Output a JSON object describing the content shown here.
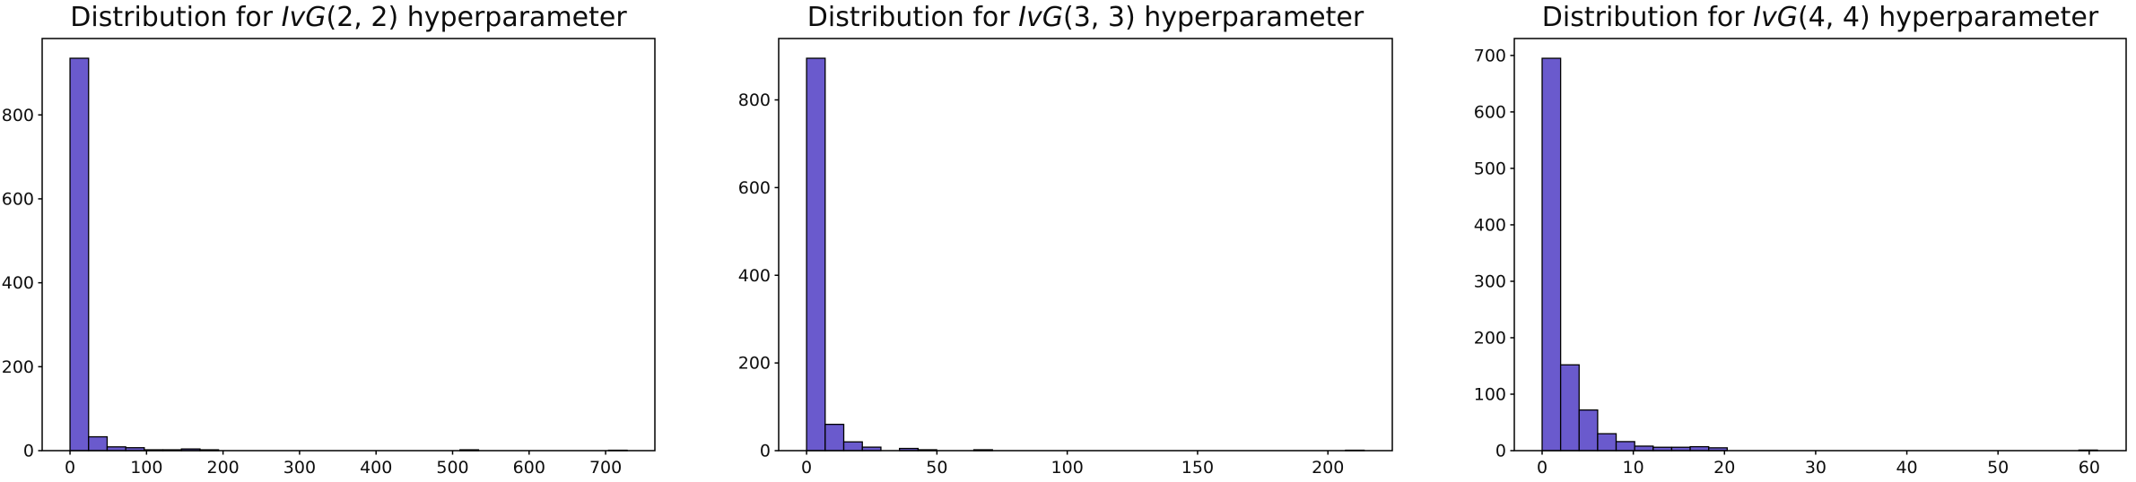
{
  "figure": {
    "background": "#ffffff",
    "bar_fill": "#6a5acd",
    "bar_edge": "#000000",
    "axis_color": "#000000",
    "text_color": "#0d0d0d"
  },
  "chart_data": [
    {
      "type": "bar",
      "title": "Distribution for IvG(2, 2) hyperparameter",
      "title_prefix": "Distribution for ",
      "title_math": "IvG",
      "title_args": "(2, 2)",
      "title_suffix": " hyperparameter",
      "xlabel": "",
      "ylabel": "",
      "bin_start": 0,
      "bin_width": 24.27,
      "counts": [
        935,
        33,
        9,
        7,
        2,
        2,
        4,
        2,
        0,
        0,
        0,
        0,
        0,
        0,
        0,
        0,
        0,
        0,
        0,
        0,
        0,
        2,
        0,
        0,
        0,
        0,
        0,
        0,
        0,
        1
      ],
      "xlim": [
        -36.4,
        764.4
      ],
      "ylim": [
        0,
        982
      ],
      "xticks": [
        0,
        100,
        200,
        300,
        400,
        500,
        600,
        700
      ],
      "yticks": [
        0,
        200,
        400,
        600,
        800
      ],
      "grid": false,
      "legend": null
    },
    {
      "type": "bar",
      "title": "Distribution for IvG(3, 3) hyperparameter",
      "title_prefix": "Distribution for ",
      "title_math": "IvG",
      "title_args": "(3, 3)",
      "title_suffix": " hyperparameter",
      "xlabel": "",
      "ylabel": "",
      "bin_start": 0,
      "bin_width": 7.13,
      "counts": [
        895,
        60,
        20,
        8,
        0,
        5,
        2,
        0,
        0,
        2,
        0,
        0,
        0,
        0,
        0,
        0,
        0,
        0,
        0,
        0,
        0,
        0,
        0,
        0,
        0,
        0,
        0,
        0,
        0,
        1
      ],
      "xlim": [
        -10.7,
        224.7
      ],
      "ylim": [
        0,
        940
      ],
      "xticks": [
        0,
        50,
        100,
        150,
        200
      ],
      "yticks": [
        0,
        200,
        400,
        600,
        800
      ],
      "grid": false,
      "legend": null
    },
    {
      "type": "bar",
      "title": "Distribution for IvG(4, 4) hyperparameter",
      "title_prefix": "Distribution for ",
      "title_math": "IvG",
      "title_args": "(4, 4)",
      "title_suffix": " hyperparameter",
      "xlabel": "",
      "ylabel": "",
      "bin_start": 0,
      "bin_width": 2.03,
      "counts": [
        695,
        152,
        72,
        30,
        16,
        8,
        6,
        6,
        7,
        5,
        0,
        0,
        0,
        0,
        0,
        0,
        0,
        0,
        0,
        0,
        0,
        0,
        0,
        0,
        0,
        0,
        0,
        0,
        0,
        1
      ],
      "xlim": [
        -3.05,
        64.05
      ],
      "ylim": [
        0,
        730
      ],
      "xticks": [
        0,
        10,
        20,
        30,
        40,
        50,
        60
      ],
      "yticks": [
        0,
        100,
        200,
        300,
        400,
        500,
        600,
        700
      ],
      "grid": false,
      "legend": null
    }
  ]
}
